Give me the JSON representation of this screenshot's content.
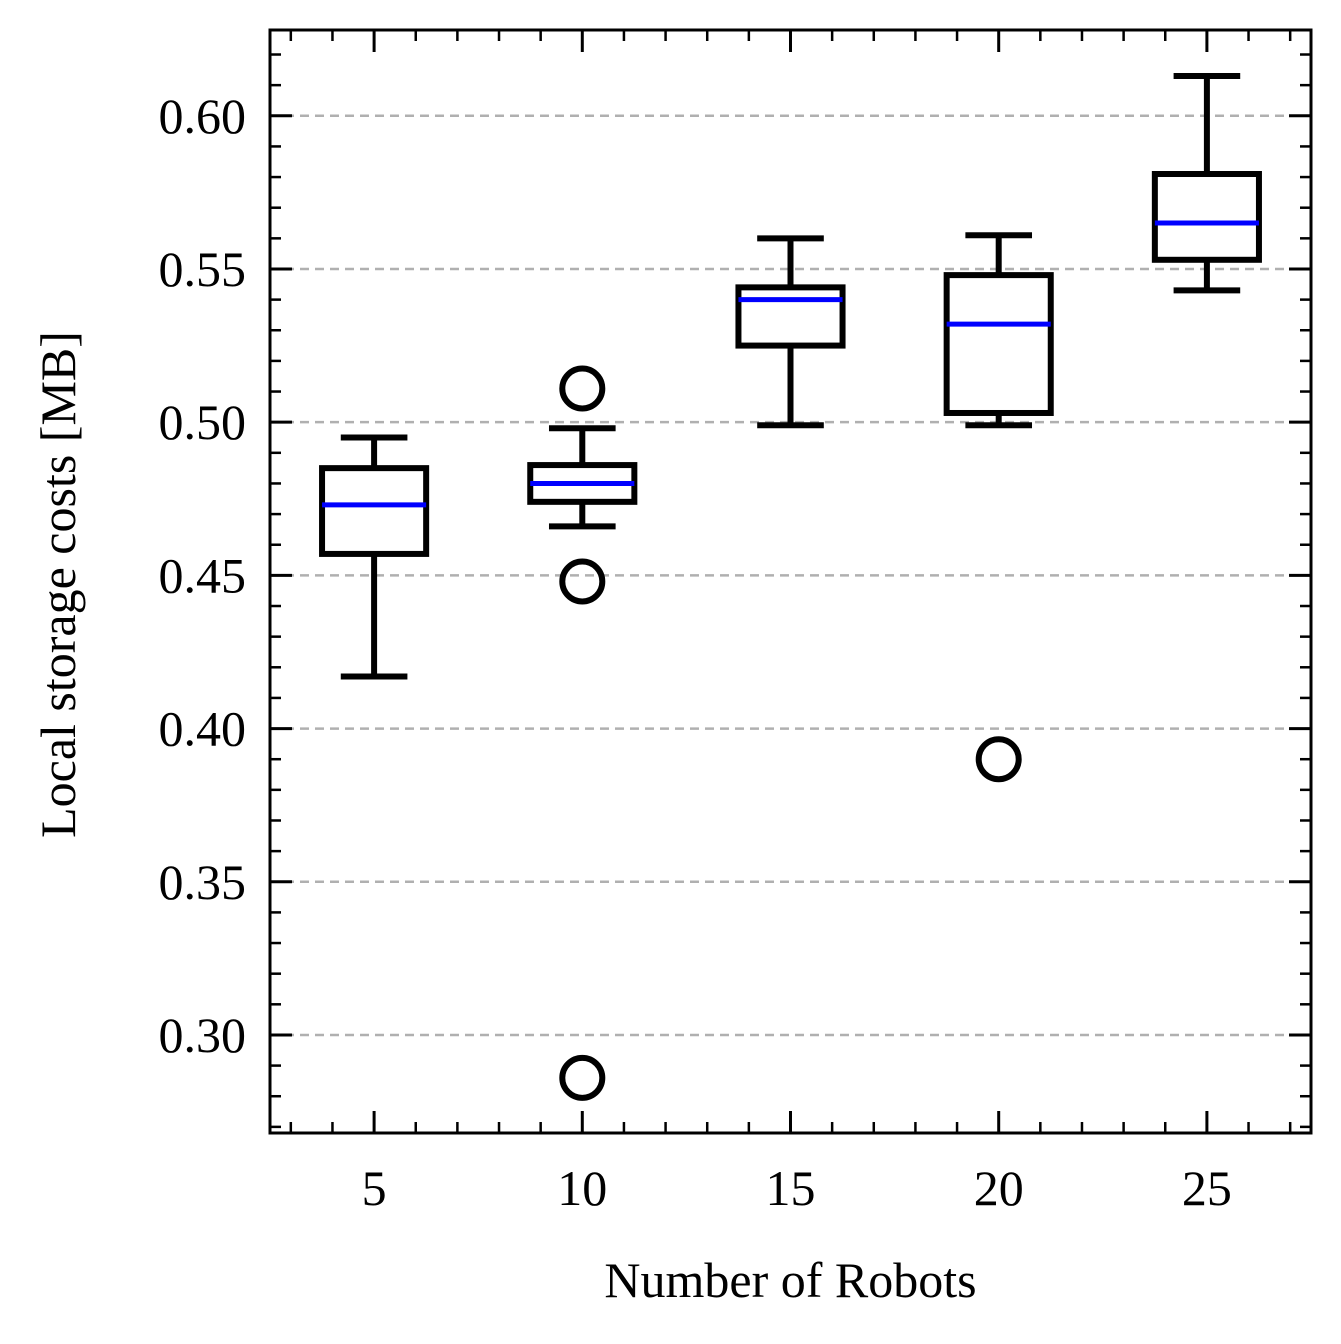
{
  "chart_data": {
    "type": "box",
    "title": "",
    "xlabel": "Number of Robots",
    "ylabel": "Local storage costs [MB]",
    "xlim": [
      2.5,
      27.5
    ],
    "ylim": [
      0.268,
      0.628
    ],
    "x_ticks": [
      5,
      10,
      15,
      20,
      25
    ],
    "x_tick_labels": [
      "5",
      "10",
      "15",
      "20",
      "25"
    ],
    "y_ticks": [
      0.3,
      0.35,
      0.4,
      0.45,
      0.5,
      0.55,
      0.6
    ],
    "y_tick_labels": [
      "0.30",
      "0.35",
      "0.40",
      "0.45",
      "0.50",
      "0.55",
      "0.60"
    ],
    "grid": "y-dashed",
    "colors": {
      "box": "#000000",
      "median": "#0000ff",
      "grid": "#b0b0b0"
    },
    "boxes": [
      {
        "x": 5,
        "whisker_low": 0.417,
        "q1": 0.457,
        "median": 0.473,
        "q3": 0.485,
        "whisker_high": 0.495,
        "outliers": []
      },
      {
        "x": 10,
        "whisker_low": 0.466,
        "q1": 0.474,
        "median": 0.48,
        "q3": 0.486,
        "whisker_high": 0.498,
        "outliers": [
          0.511,
          0.448,
          0.286
        ]
      },
      {
        "x": 15,
        "whisker_low": 0.499,
        "q1": 0.525,
        "median": 0.54,
        "q3": 0.544,
        "whisker_high": 0.56,
        "outliers": []
      },
      {
        "x": 20,
        "whisker_low": 0.499,
        "q1": 0.503,
        "median": 0.532,
        "q3": 0.548,
        "whisker_high": 0.561,
        "outliers": [
          0.39
        ]
      },
      {
        "x": 25,
        "whisker_low": 0.543,
        "q1": 0.553,
        "median": 0.565,
        "q3": 0.581,
        "whisker_high": 0.613,
        "outliers": []
      }
    ]
  }
}
